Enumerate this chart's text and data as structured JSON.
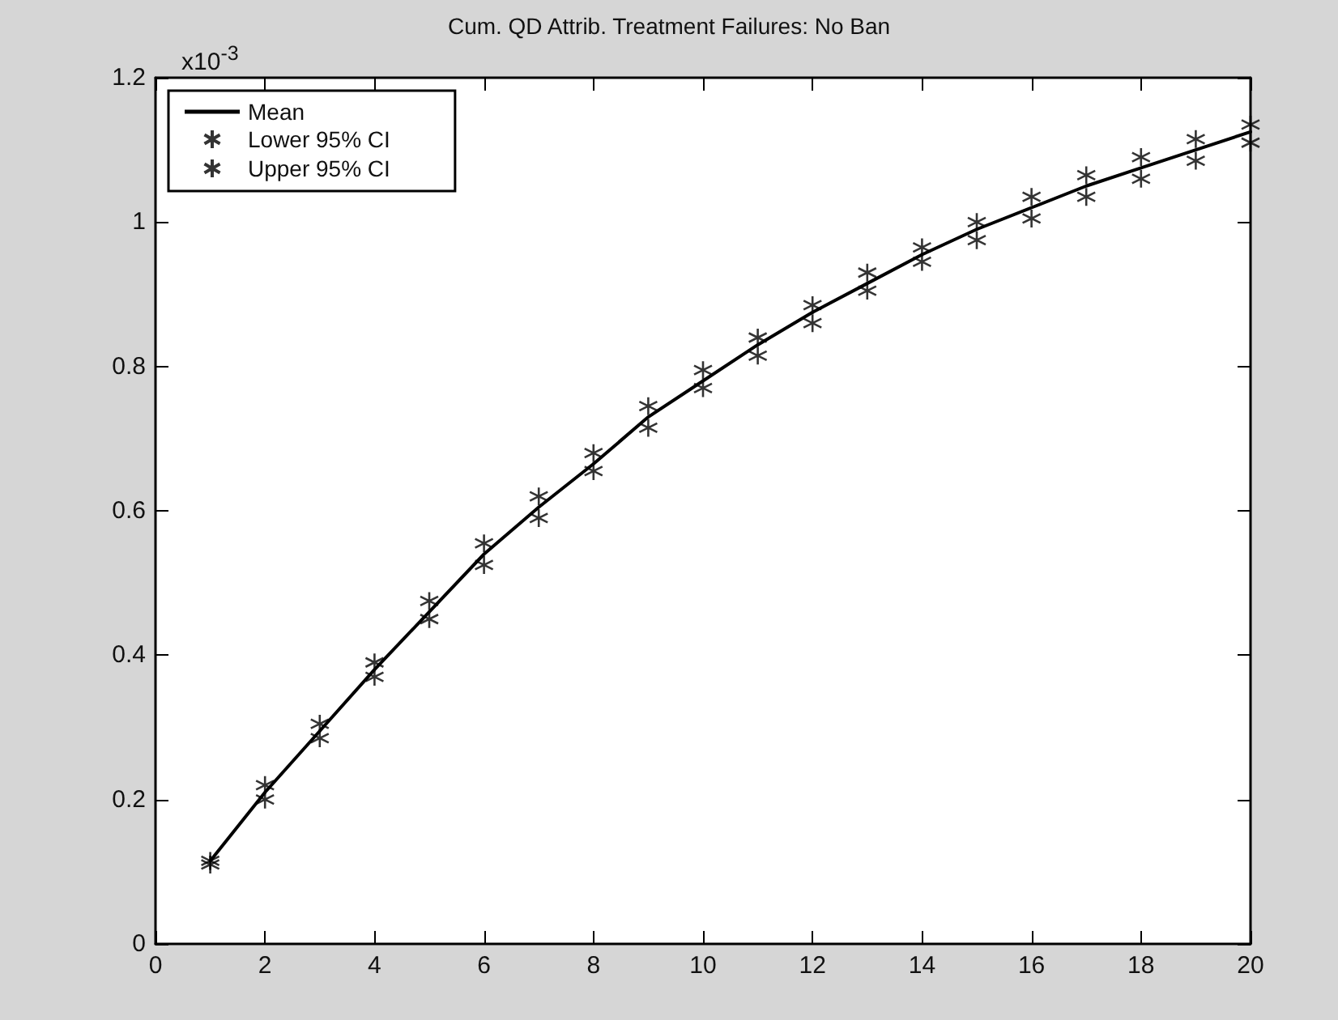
{
  "chart_data": {
    "type": "line",
    "title": "Cum. QD Attrib. Treatment Failures: No Ban",
    "annotations": [
      "x10$^{-3}$"
    ],
    "x": [
      1,
      2,
      3,
      4,
      5,
      6,
      7,
      8,
      9,
      10,
      11,
      12,
      13,
      14,
      15,
      16,
      17,
      18,
      19,
      20
    ],
    "series": [
      {
        "name": "Mean",
        "color": "#000000",
        "marker": "none",
        "line_style": "solid",
        "values": [
          0.115,
          0.21,
          0.295,
          0.38,
          0.46,
          0.54,
          0.605,
          0.665,
          0.73,
          0.78,
          0.83,
          0.875,
          0.915,
          0.955,
          0.99,
          1.02,
          1.05,
          1.075,
          1.1,
          1.125
        ]
      },
      {
        "name": "Lower 95% CI",
        "type": "scatter",
        "color": "#000000",
        "marker": "cross",
        "values": [
          0.11,
          0.2,
          0.285,
          0.37,
          0.45,
          0.525,
          0.59,
          0.655,
          0.715,
          0.77,
          0.815,
          0.86,
          0.905,
          0.945,
          0.975,
          1.005,
          1.035,
          1.06,
          1.085,
          1.11
        ]
      },
      {
        "name": "Upper 95% CI",
        "type": "scatter",
        "color": "#000000",
        "marker": "cross",
        "values": [
          0.115,
          0.22,
          0.305,
          0.39,
          0.475,
          0.555,
          0.62,
          0.68,
          0.745,
          0.795,
          0.84,
          0.885,
          0.93,
          0.965,
          1.0,
          1.035,
          1.065,
          1.09,
          1.115,
          1.135
        ]
      }
    ],
    "xlim": [
      0,
      20
    ],
    "xticks": [
      0,
      2,
      4,
      6,
      8,
      10,
      12,
      14,
      16,
      18,
      20
    ],
    "ylim": [
      0,
      1.2
    ],
    "yticks": [
      0,
      0.2,
      0.4,
      0.6,
      0.8,
      1,
      1.2
    ],
    "grid": false,
    "legend": "top left"
  }
}
